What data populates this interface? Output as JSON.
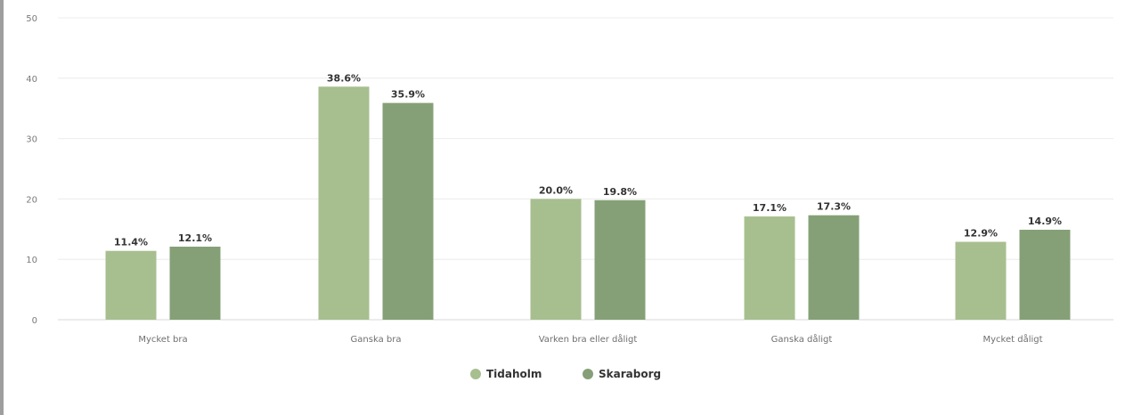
{
  "chart_data": {
    "type": "bar",
    "categories": [
      "Mycket bra",
      "Ganska bra",
      "Varken bra eller dåligt",
      "Ganska dåligt",
      "Mycket dåligt"
    ],
    "series": [
      {
        "name": "Tidaholm",
        "color": "#a7bf8f",
        "values": [
          11.4,
          38.6,
          20.0,
          17.1,
          12.9
        ],
        "labels": [
          "11.4%",
          "38.6%",
          "20.0%",
          "17.1%",
          "12.9%"
        ]
      },
      {
        "name": "Skaraborg",
        "color": "#85a077",
        "values": [
          12.1,
          35.9,
          19.8,
          17.3,
          14.9
        ],
        "labels": [
          "12.1%",
          "35.9%",
          "19.8%",
          "17.3%",
          "14.9%"
        ]
      }
    ],
    "yticks": [
      "0",
      "10",
      "20",
      "30",
      "40",
      "50"
    ],
    "ylim": [
      0,
      50
    ],
    "grid": true,
    "legend_position": "bottom-center",
    "title": "",
    "xlabel": "",
    "ylabel": ""
  }
}
